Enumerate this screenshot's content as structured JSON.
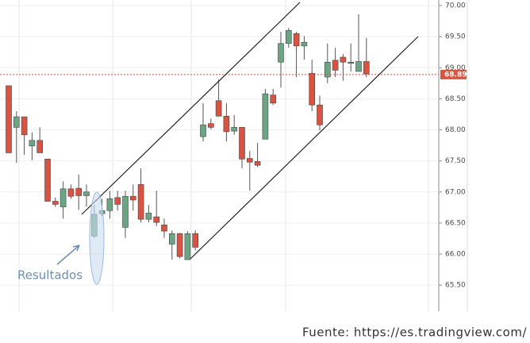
{
  "chart_data": {
    "type": "candlestick",
    "ylim": [
      65.08,
      70.09
    ],
    "yticks": [
      {
        "value": 65.5,
        "label": "65.50"
      },
      {
        "value": 66,
        "label": "66.00"
      },
      {
        "value": 66.5,
        "label": "66.50"
      },
      {
        "value": 67,
        "label": "67.00"
      },
      {
        "value": 67.5,
        "label": "67.50"
      },
      {
        "value": 68,
        "label": "68.00"
      },
      {
        "value": 68.5,
        "label": "68.50"
      },
      {
        "value": 69,
        "label": "69.00"
      },
      {
        "value": 69.5,
        "label": "69.50"
      },
      {
        "value": 70,
        "label": "70.00"
      }
    ],
    "up_color": "#6ba583",
    "down_color": "#d75442",
    "open": [
      68.71,
      68.04,
      68.21,
      67.74,
      67.83,
      67.53,
      66.85,
      66.76,
      67.05,
      67.06,
      66.94,
      66.29,
      66.65,
      66.7,
      66.91,
      66.43,
      66.93,
      67.12,
      66.56,
      66.6,
      66.47,
      66.16,
      66.33,
      65.91,
      66.33,
      67.89,
      68.1,
      68.47,
      68.22,
      67.98,
      68.04,
      67.54,
      67.49,
      67.85,
      68.56,
      69.09,
      69.39,
      69.55,
      69.35,
      68.91,
      68.4,
      68.85,
      69.12,
      69.17,
      69.07,
      68.94,
      69.1
    ],
    "high": [
      68.71,
      68.3,
      68.21,
      67.96,
      68.04,
      67.53,
      66.91,
      67.17,
      67.12,
      67.28,
      67.12,
      66.79,
      66.89,
      67.02,
      67.02,
      67.02,
      67.12,
      67.38,
      66.79,
      67.02,
      66.57,
      66.38,
      66.34,
      66.37,
      66.38,
      68.43,
      68.18,
      68.81,
      68.43,
      68.24,
      68.04,
      67.66,
      67.79,
      68.66,
      68.66,
      69.58,
      69.64,
      69.58,
      69.51,
      69.13,
      68.55,
      69.39,
      69.32,
      69.22,
      69.39,
      69.86,
      69.48
    ],
    "low": [
      67.63,
      67.47,
      67.6,
      67.51,
      67.63,
      66.85,
      66.76,
      66.57,
      66.89,
      66.71,
      66.76,
      66.26,
      66.61,
      66.57,
      66.7,
      66.26,
      66.7,
      66.51,
      66.51,
      66.45,
      66.26,
      65.91,
      65.93,
      65.91,
      66.06,
      67.81,
      68.01,
      68.22,
      67.81,
      67.92,
      67.38,
      67.02,
      67.4,
      67.85,
      68.4,
      68.68,
      69.32,
      68.85,
      69.13,
      68.3,
      67.99,
      68.75,
      68.85,
      68.79,
      68.94,
      68.94,
      68.85
    ],
    "close": [
      67.63,
      68.21,
      67.92,
      67.83,
      67.63,
      66.85,
      66.8,
      67.05,
      66.93,
      66.94,
      67.0,
      66.64,
      66.7,
      66.89,
      66.8,
      66.93,
      66.87,
      66.56,
      66.66,
      66.51,
      66.37,
      66.33,
      65.96,
      66.33,
      66.11,
      68.08,
      68.04,
      68.22,
      67.97,
      68.04,
      67.53,
      67.48,
      67.43,
      68.58,
      68.43,
      69.39,
      69.6,
      69.35,
      69.41,
      68.4,
      68.08,
      69.09,
      68.96,
      69.09,
      69.09,
      69.1,
      68.9
    ],
    "last_price": 68.89,
    "annotation": "Resultados",
    "source": "Fuente: https://es.tradingview.com/"
  }
}
